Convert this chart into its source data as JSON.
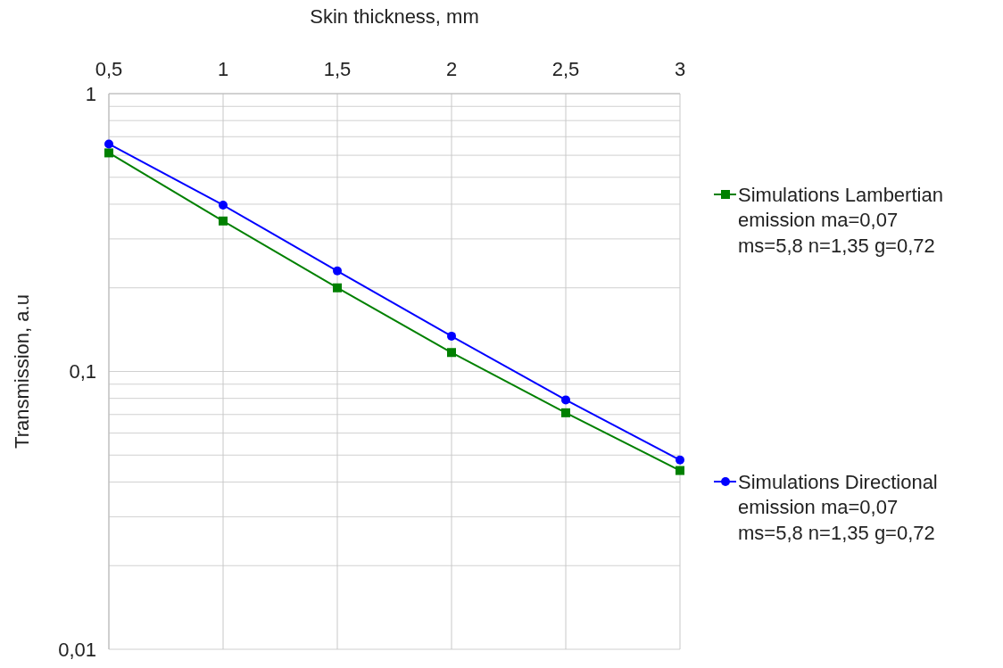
{
  "chart_data": {
    "type": "line",
    "xlabel": "Skin thickness, mm",
    "ylabel": "Transmission, a.u",
    "log": "y",
    "grid": true,
    "legend": "right",
    "line_style": "solid",
    "x": [
      0.5,
      1,
      1.5,
      2,
      2.5,
      3
    ],
    "xlim": [
      0.5,
      3
    ],
    "xticks": [
      {
        "value": 0.5,
        "label": "0,5"
      },
      1,
      {
        "value": 1.5,
        "label": "1,5"
      },
      2,
      {
        "value": 2.5,
        "label": "2,5"
      },
      3
    ],
    "ylim": [
      0.01,
      1
    ],
    "yticks": [
      {
        "value": 0.01,
        "label": "0,01"
      },
      {
        "value": 0.02,
        "label": null
      },
      {
        "value": 0.03,
        "label": null
      },
      {
        "value": 0.04,
        "label": null
      },
      {
        "value": 0.05,
        "label": null
      },
      {
        "value": 0.06,
        "label": null
      },
      {
        "value": 0.07,
        "label": null
      },
      {
        "value": 0.08,
        "label": null
      },
      {
        "value": 0.09,
        "label": null
      },
      {
        "value": 0.1,
        "label": "0,1"
      },
      {
        "value": 0.2,
        "label": null
      },
      {
        "value": 0.3,
        "label": null
      },
      {
        "value": 0.4,
        "label": null
      },
      {
        "value": 0.5,
        "label": null
      },
      {
        "value": 0.6,
        "label": null
      },
      {
        "value": 0.7,
        "label": null
      },
      {
        "value": 0.8,
        "label": null
      },
      {
        "value": 0.9,
        "label": null
      },
      1
    ],
    "series": [
      {
        "name": "Simulations Lambertian emission ma=0,07 ms=5,8 n=1,35 g=0,72",
        "color": "#008000",
        "marker": "square",
        "values": [
          0.612,
          0.348,
          0.2,
          0.117,
          0.071,
          0.044
        ]
      },
      {
        "name": "Simulations Directional emission ma=0,07 ms=5,8 n=1,35 g=0,72",
        "color": "#0000ff",
        "marker": "circle",
        "values": [
          0.659,
          0.397,
          0.23,
          0.134,
          0.079,
          0.048
        ]
      }
    ]
  }
}
